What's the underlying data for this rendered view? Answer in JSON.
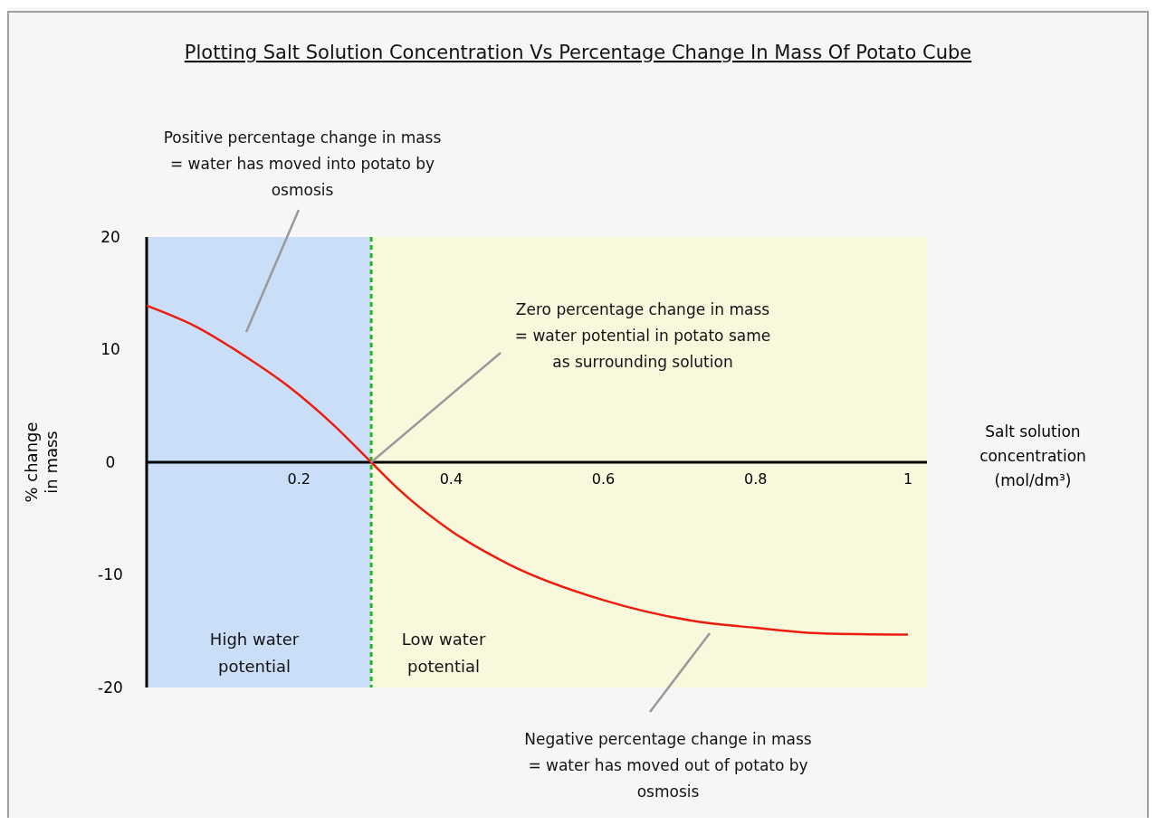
{
  "chart_data": {
    "type": "line",
    "title": "Plotting Salt Solution Concentration Vs Percentage Change In Mass Of Potato Cube",
    "xlabel": "Salt solution concentration (mol/dm³)",
    "ylabel": "% change in mass",
    "x": [
      0,
      0.066,
      0.125,
      0.185,
      0.244,
      0.295,
      0.331,
      0.4,
      0.477,
      0.598,
      0.719,
      0.8,
      0.889,
      1
    ],
    "series": [
      {
        "color": "#ee1c0e",
        "values": [
          13.9,
          12.0,
          9.6,
          6.8,
          3.4,
          0,
          -2.4,
          -6.1,
          -9.1,
          -12.2,
          -14.1,
          -14.7,
          -15.2,
          -15.3
        ]
      }
    ],
    "xlim": [
      0,
      1.025
    ],
    "xticks": [
      0.2,
      0.4,
      0.6,
      0.8,
      1
    ],
    "ylim": [
      -20,
      20
    ],
    "yticks": [
      -20,
      -10,
      0,
      10,
      20
    ],
    "marker": "none",
    "line_style": "solid",
    "grid": false,
    "ref_lines": [
      {
        "axis": "x",
        "value": 0.295,
        "color": "#22b422",
        "line_style": "dashed"
      }
    ],
    "bands": [
      {
        "axis": "x",
        "from": 0,
        "to": 0.295,
        "label": "High water potential",
        "color": "#cadff7"
      },
      {
        "axis": "x",
        "from": 0.295,
        "to": 1.025,
        "label": "Low water potential",
        "color": "#f7f8dc"
      }
    ],
    "annotations": [
      "Positive percentage change in mass = water has moved into potato by osmosis",
      {
        "text": "Zero percentage change in mass = water potential in potato same as surrounding solution",
        "x": 0.295,
        "y": 0
      },
      "Negative percentage change in mass = water has moved out of potato by osmosis"
    ]
  }
}
